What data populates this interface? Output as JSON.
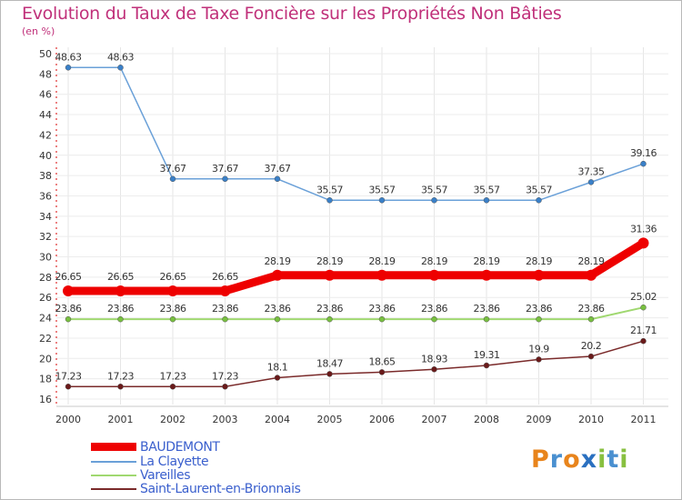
{
  "title": "Evolution du Taux de Taxe Foncière sur les Propriétés Non Bâties",
  "unit_label": "(en %)",
  "logo_text": [
    "P",
    "r",
    "o",
    "x",
    "i",
    "t",
    "i"
  ],
  "logo_colors": [
    "#e8841c",
    "#4a90d0",
    "#e8841c",
    "#2a70c0",
    "#88c040",
    "#4a90d0",
    "#88c040"
  ],
  "chart_data": {
    "type": "line",
    "title": "Evolution du Taux de Taxe Foncière sur les Propriétés Non Bâties",
    "ylabel": "(en %)",
    "xlabel": "",
    "x": [
      "2000",
      "2001",
      "2002",
      "2003",
      "2004",
      "2005",
      "2006",
      "2007",
      "2008",
      "2009",
      "2010",
      "2011"
    ],
    "ylim": [
      16,
      50
    ],
    "yticks": [
      16,
      18,
      20,
      22,
      24,
      26,
      28,
      30,
      32,
      34,
      36,
      38,
      40,
      42,
      44,
      46,
      48,
      50
    ],
    "legend_position": "bottom-left",
    "series": [
      {
        "name": "BAUDEMONT",
        "color": "#ee0000",
        "marker": "#ee0000",
        "width": 9,
        "values": [
          26.65,
          26.65,
          26.65,
          26.65,
          28.19,
          28.19,
          28.19,
          28.19,
          28.19,
          28.19,
          28.19,
          31.36
        ],
        "labels": [
          "26.65",
          "26.65",
          "26.65",
          "26.65",
          "28.19",
          "28.19",
          "28.19",
          "28.19",
          "28.19",
          "28.19",
          "28.19",
          "31.36"
        ]
      },
      {
        "name": "La Clayette",
        "color": "#6aa0d8",
        "marker": "#3a80c8",
        "width": 1.5,
        "values": [
          48.63,
          48.63,
          37.67,
          37.67,
          37.67,
          35.57,
          35.57,
          35.57,
          35.57,
          35.57,
          37.35,
          39.16
        ],
        "labels": [
          "48.63",
          "48.63",
          "37.67",
          "37.67",
          "37.67",
          "35.57",
          "35.57",
          "35.57",
          "35.57",
          "35.57",
          "37.35",
          "39.16"
        ]
      },
      {
        "name": "Vareilles",
        "color": "#a0d870",
        "marker": "#78c040",
        "width": 2,
        "values": [
          23.86,
          23.86,
          23.86,
          23.86,
          23.86,
          23.86,
          23.86,
          23.86,
          23.86,
          23.86,
          23.86,
          25.02
        ],
        "labels": [
          "23.86",
          "23.86",
          "23.86",
          "23.86",
          "23.86",
          "23.86",
          "23.86",
          "23.86",
          "23.86",
          "23.86",
          "23.86",
          "25.02"
        ]
      },
      {
        "name": "Saint-Laurent-en-Brionnais",
        "color": "#7a2a2a",
        "marker": "#6a1a1a",
        "width": 1.5,
        "values": [
          17.23,
          17.23,
          17.23,
          17.23,
          18.1,
          18.47,
          18.65,
          18.93,
          19.31,
          19.9,
          20.2,
          21.71
        ],
        "labels": [
          "17.23",
          "17.23",
          "17.23",
          "17.23",
          "18.1",
          "18.47",
          "18.65",
          "18.93",
          "19.31",
          "19.9",
          "20.2",
          "21.71"
        ]
      }
    ]
  }
}
